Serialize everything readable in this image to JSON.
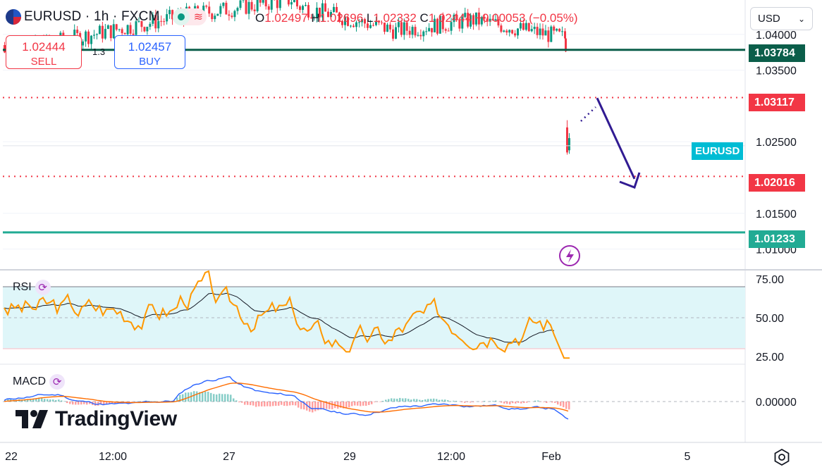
{
  "header": {
    "symbol": "EURUSD",
    "interval": "1h",
    "exchange": "FXCM",
    "ohlc": {
      "o_label": "O",
      "o": "1.02497",
      "h_label": "H",
      "h": "1.02696",
      "l_label": "L",
      "l": "1.02332",
      "c_label": "C",
      "c": "1.02444",
      "change": "−0.00053 (−0.05%)"
    },
    "sell_price": "1.02444",
    "sell_label": "SELL",
    "buy_price": "1.02457",
    "buy_label": "BUY",
    "spread": "1.3",
    "currency": "USD"
  },
  "colors": {
    "up": "#089981",
    "down": "#f23645",
    "rsi": "#ff9800",
    "rsi_ma": "#131722",
    "macd": "#2962ff",
    "signal": "#ff6d00",
    "arrow": "#311b92",
    "green_line": "#0b5e4a",
    "teal_line": "#22ab94",
    "red_dot": "#f23645"
  },
  "price_levels": [
    {
      "value": "1.03784",
      "style": "solid-dark"
    },
    {
      "value": "1.03117",
      "style": "dotted-red"
    },
    {
      "value": "1.02016",
      "style": "dotted-red"
    },
    {
      "value": "1.01233",
      "style": "solid-teal"
    }
  ],
  "symbol_tag": "EURUSD",
  "indicators": {
    "rsi_label": "RSI",
    "macd_label": "MACD"
  },
  "logo_text": "TradingView",
  "chart_data": [
    {
      "type": "candlestick",
      "x_ticks": [
        "22",
        "12:00",
        "27",
        "29",
        "12:00",
        "Feb",
        "5"
      ],
      "y_ticks": [
        "1.04000",
        "1.03500",
        "1.02500",
        "1.01500",
        "1.01000"
      ],
      "ylim": [
        1.0072,
        1.0448
      ],
      "current_price": 1.02444,
      "lines": [
        1.03784,
        1.03117,
        1.02016,
        1.01233
      ],
      "projection": {
        "from": 1.0311,
        "to": 1.0202
      }
    },
    {
      "type": "line",
      "name": "RSI",
      "y_ticks": [
        "75.00",
        "50.00",
        "25.00"
      ],
      "band": [
        30,
        70
      ],
      "ylim": [
        20,
        80
      ],
      "last": 23
    },
    {
      "type": "bar",
      "name": "MACD",
      "y_ticks": [
        "0.00000"
      ]
    }
  ]
}
